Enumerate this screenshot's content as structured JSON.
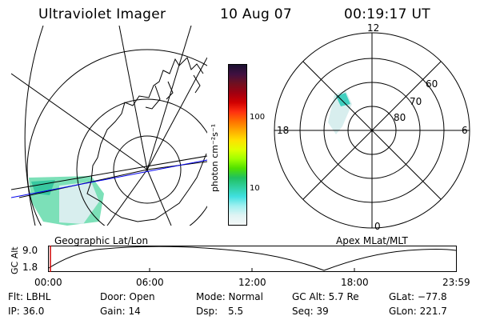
{
  "header": {
    "instrument": "Ultraviolet Imager",
    "date": "10 Aug 07",
    "time": "00:19:17 UT"
  },
  "geo_panel": {
    "label": "Geographic Lat/Lon"
  },
  "colorbar": {
    "unit_label": "photon cm⁻²s⁻¹",
    "ticks": [
      "100",
      "10"
    ],
    "colors": [
      "#1a1030",
      "#401040",
      "#701020",
      "#a00010",
      "#d00000",
      "#ff3010",
      "#ff7000",
      "#ffaa00",
      "#ffe000",
      "#e0ff00",
      "#a0ff00",
      "#50e000",
      "#20c060",
      "#30d0a0",
      "#40e0e0",
      "#a0f0f0",
      "#e0f4f4",
      "#f4f8f8"
    ]
  },
  "polar_panel": {
    "label": "Apex MLat/MLT",
    "mlt_labels": {
      "top": "12",
      "right": "6",
      "bottom": "0",
      "left": "18"
    },
    "lat_labels": [
      "60",
      "70",
      "80"
    ]
  },
  "timeline": {
    "y_label": "GC Alt",
    "y_ticks": [
      "9.0",
      "1.8"
    ],
    "x_ticks": [
      "00:00",
      "06:00",
      "12:00",
      "18:00",
      "23:59"
    ]
  },
  "info": {
    "row1": {
      "flt": "Flt: LBHL",
      "door": "Door: Open",
      "mode": "Mode: Normal",
      "gcalt": "GC Alt: 5.7 Re",
      "glat": "GLat: −77.8"
    },
    "row2": {
      "ip": "IP: 36.0",
      "gain": "Gain: 14",
      "dsp_label": "Dsp:",
      "dsp_value": "5.5",
      "seq": "Seq: 39",
      "glon": "GLon: 221.7"
    }
  }
}
